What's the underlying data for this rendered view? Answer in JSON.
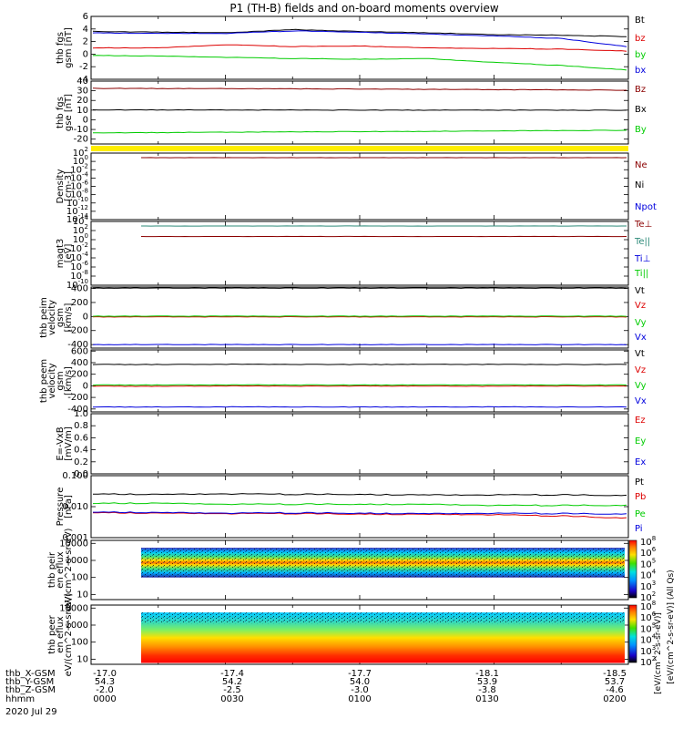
{
  "title": "P1 (TH-B) fields and on-board moments overview",
  "date_label": "2020 Jul 29",
  "ephemeris": {
    "rows": [
      "thb_X-GSM",
      "thb_Y-GSM",
      "thb_Z-GSM",
      "hhmm"
    ],
    "columns": [
      [
        "-17.0",
        "54.3",
        "-2.0",
        "0000"
      ],
      [
        "-17.4",
        "54.2",
        "-2.5",
        "0030"
      ],
      [
        "-17.7",
        "54.0",
        "-3.0",
        "0100"
      ],
      [
        "-18.1",
        "53.9",
        "-3.8",
        "0130"
      ],
      [
        "-18.5",
        "53.7",
        "-4.6",
        "0200"
      ]
    ]
  },
  "colorbar_label_1": "[eV/(cm^2-s-sr-eV)] (All Qs)",
  "colorbar_label_2": "[eV/(cm^2-s-sr-eV)]",
  "colors": {
    "black": "#000000",
    "red": "#dd0000",
    "green": "#00cc00",
    "blue": "#0000dd",
    "darkred": "#8b0000",
    "teal": "#2e8b7a",
    "yellow": "#ffee00"
  },
  "chart_data": [
    {
      "type": "line",
      "ylabel": "thb fgs gsm [nT]",
      "ylim": [
        -4,
        6
      ],
      "yticks": [
        "6",
        "4",
        "2",
        "0",
        "-2",
        "-4"
      ],
      "xlim": [
        "0000",
        "0200"
      ],
      "legend": [
        "Bt",
        "bz",
        "by",
        "bx"
      ],
      "series": [
        {
          "name": "Bt",
          "color": "black",
          "values": [
            3.6,
            3.5,
            3.4,
            3.9,
            3.6,
            3.4,
            3.1,
            3.0,
            2.8
          ]
        },
        {
          "name": "bz",
          "color": "red",
          "values": [
            1.0,
            1.0,
            1.5,
            1.2,
            1.3,
            1.0,
            0.9,
            0.8,
            0.5
          ]
        },
        {
          "name": "by",
          "color": "green",
          "values": [
            -0.2,
            -0.3,
            -0.5,
            -0.7,
            -0.8,
            -0.7,
            -1.3,
            -1.8,
            -2.5
          ]
        },
        {
          "name": "bx",
          "color": "blue",
          "values": [
            3.4,
            3.3,
            3.3,
            3.7,
            3.5,
            3.2,
            2.9,
            2.5,
            1.2
          ]
        }
      ]
    },
    {
      "type": "line",
      "ylabel": "thb fgs gse [nT]",
      "ylim": [
        -25,
        40
      ],
      "yticks": [
        "40",
        "30",
        "20",
        "10",
        "0",
        "-10",
        "-20"
      ],
      "xlim": [
        "0000",
        "0200"
      ],
      "legend": [
        "Bz",
        "Bx",
        "By"
      ],
      "series": [
        {
          "name": "Bz",
          "color": "darkred",
          "values": [
            32.5,
            32.3,
            32.2,
            32.0,
            31.8,
            31.5,
            31.2,
            30.9,
            30.6
          ]
        },
        {
          "name": "Bx",
          "color": "black",
          "values": [
            10.2,
            10.2,
            10.1,
            10.1,
            10.0,
            10.0,
            10.0,
            9.9,
            9.9
          ]
        },
        {
          "name": "By",
          "color": "green",
          "values": [
            -13.5,
            -13.2,
            -12.8,
            -12.5,
            -12.2,
            -12.0,
            -11.5,
            -11.2,
            -10.8
          ]
        }
      ]
    },
    {
      "type": "line",
      "ylabel": "Density [cm-3]",
      "yscale": "log",
      "ylim": [
        1e-14,
        100
      ],
      "yticks": [
        "10^2",
        "10^0",
        "10^-2",
        "10^-4",
        "10^-6",
        "10^-8",
        "10^-10",
        "10^-12",
        "10^-14"
      ],
      "xlim": [
        "0000",
        "0200"
      ],
      "legend": [
        "Ne",
        "Ni",
        "Npot"
      ],
      "series": [
        {
          "name": "Ne",
          "color": "darkred",
          "values": [
            8,
            8,
            8,
            8,
            8,
            8,
            8,
            8,
            8
          ]
        }
      ]
    },
    {
      "type": "line",
      "ylabel": "magt3 [eV]",
      "yscale": "log",
      "ylim": [
        1e-10,
        10000
      ],
      "yticks": [
        "10^4",
        "10^2",
        "10^0",
        "10^-2",
        "10^-4",
        "10^-6",
        "10^-8",
        "10^-10"
      ],
      "xlim": [
        "0000",
        "0200"
      ],
      "legend": [
        "Te⊥",
        "Te||",
        "Ti⊥",
        "Ti||"
      ],
      "series": [
        {
          "name": "Te||",
          "color": "teal",
          "values": [
            1000,
            1000,
            1000,
            1000,
            1000,
            1000,
            1000,
            1000,
            1000
          ]
        },
        {
          "name": "Te⊥",
          "color": "darkred",
          "values": [
            5,
            5,
            5,
            5,
            5,
            5,
            5,
            5,
            5
          ]
        }
      ]
    },
    {
      "type": "line",
      "ylabel": "thb peim velocity gsm [km/s]",
      "ylim": [
        -450,
        420
      ],
      "yticks": [
        "400",
        "200",
        "0",
        "-200",
        "-400"
      ],
      "xlim": [
        "0000",
        "0200"
      ],
      "legend": [
        "Vt",
        "Vz",
        "Vy",
        "Vx"
      ],
      "series": [
        {
          "name": "Vt",
          "color": "black",
          "values": [
            405,
            405,
            405,
            405,
            405,
            405,
            405,
            405,
            405
          ]
        },
        {
          "name": "Vz",
          "color": "red",
          "values": [
            -5,
            -5,
            -5,
            -5,
            -5,
            -5,
            -5,
            -5,
            -5
          ]
        },
        {
          "name": "Vy",
          "color": "green",
          "values": [
            5,
            5,
            5,
            5,
            5,
            5,
            5,
            5,
            5
          ]
        },
        {
          "name": "Vx",
          "color": "blue",
          "values": [
            -400,
            -400,
            -400,
            -400,
            -400,
            -400,
            -400,
            -400,
            -400
          ]
        }
      ]
    },
    {
      "type": "line",
      "ylabel": "thb peem velocity gsm [km/s]",
      "ylim": [
        -450,
        620
      ],
      "yticks": [
        "600",
        "400",
        "200",
        "0",
        "-200",
        "-400"
      ],
      "xlim": [
        "0000",
        "0200"
      ],
      "legend": [
        "Vt",
        "Vz",
        "Vy",
        "Vx"
      ],
      "series": [
        {
          "name": "Vt",
          "color": "black",
          "values": [
            370,
            368,
            372,
            370,
            369,
            371,
            370,
            368,
            370
          ]
        },
        {
          "name": "Vz",
          "color": "red",
          "values": [
            -5,
            -8,
            -3,
            -6,
            -4,
            -5,
            -7,
            -4,
            -5
          ]
        },
        {
          "name": "Vy",
          "color": "green",
          "values": [
            15,
            14,
            16,
            15,
            14,
            15,
            16,
            14,
            15
          ]
        },
        {
          "name": "Vx",
          "color": "blue",
          "values": [
            -365,
            -366,
            -364,
            -365,
            -366,
            -365,
            -364,
            -366,
            -365
          ]
        }
      ]
    },
    {
      "type": "line",
      "ylabel": "E=-VxB [mV/m]",
      "ylim": [
        0,
        1
      ],
      "yticks": [
        "1.0",
        "0.8",
        "0.6",
        "0.4",
        "0.2",
        "0.0"
      ],
      "xlim": [
        "0000",
        "0200"
      ],
      "legend": [
        "Ez",
        "Ey",
        "Ex"
      ],
      "series": []
    },
    {
      "type": "line",
      "ylabel": "Pressure [nPa]",
      "yscale": "log",
      "ylim": [
        0.001,
        0.1
      ],
      "yticks": [
        "0.100",
        "0.010",
        "0.001"
      ],
      "xlim": [
        "0000",
        "0200"
      ],
      "legend": [
        "Pt",
        "Pb",
        "Pe",
        "Pi"
      ],
      "series": [
        {
          "name": "Pt",
          "color": "black",
          "values": [
            0.026,
            0.025,
            0.026,
            0.025,
            0.025,
            0.024,
            0.024,
            0.024,
            0.023
          ]
        },
        {
          "name": "Pe",
          "color": "green",
          "values": [
            0.013,
            0.013,
            0.012,
            0.012,
            0.012,
            0.012,
            0.011,
            0.011,
            0.011
          ]
        },
        {
          "name": "Pb",
          "color": "red",
          "values": [
            0.0065,
            0.0062,
            0.006,
            0.006,
            0.0058,
            0.0057,
            0.0055,
            0.005,
            0.0043
          ]
        },
        {
          "name": "Pi",
          "color": "blue",
          "values": [
            0.0068,
            0.0065,
            0.0062,
            0.0063,
            0.0062,
            0.006,
            0.0061,
            0.006,
            0.0058
          ]
        }
      ]
    },
    {
      "type": "heatmap",
      "ylabel": "thb peir en eflux eV/(cm^2-s-sr-eV)",
      "yscale": "log",
      "ylim": [
        5,
        15000
      ],
      "yticks": [
        "10000",
        "1000",
        "100",
        "10"
      ],
      "xlim": [
        "0000",
        "0200"
      ],
      "colorbar_ticks": [
        "10^8",
        "10^6",
        "10^5",
        "10^4",
        "10^3",
        "10^2"
      ]
    },
    {
      "type": "heatmap",
      "ylabel": "thb peer en eflux eV/(cm^2-s-sr-eV)",
      "yscale": "log",
      "ylim": [
        5,
        15000
      ],
      "yticks": [
        "10000",
        "1000",
        "100",
        "10"
      ],
      "xlim": [
        "0000",
        "0200"
      ],
      "colorbar_ticks": [
        "10^8",
        "10^6",
        "10^5",
        "10^4",
        "10^3",
        "10^2"
      ]
    }
  ]
}
